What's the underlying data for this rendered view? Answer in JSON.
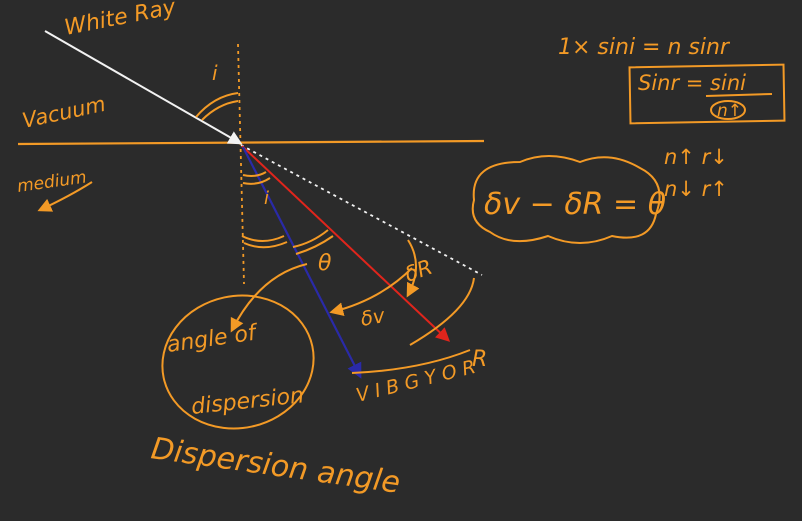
{
  "labels": {
    "white_ray": "White Ray",
    "vacuum": "Vacuum",
    "medium": "medium",
    "angle_i_top": "i",
    "angle_i_bottom": "i",
    "theta": "θ",
    "delta_r": "δR",
    "delta_v": "δv",
    "spectrum": "V I B G Y O R",
    "red_end": "R",
    "bubble_line1": "angle of",
    "bubble_line2": "dispersion",
    "dispersion_angle": "Dispersion angle"
  },
  "equations": {
    "snell": "1× sini = n sinr",
    "boxed": "Sinr = sini / n↑",
    "boxed_num": "Sinr = sini",
    "boxed_den": "n↑",
    "dev_diff": "δv − δR = θ",
    "trend1": "n↑   r↓",
    "trend2": "n↓   r↑"
  },
  "colors": {
    "background": "#2b2b2b",
    "ink_orange": "#f39a26",
    "ink_white": "#f2f2f2",
    "ray_red": "#e0251c",
    "ray_violet": "#2a2aa8"
  }
}
